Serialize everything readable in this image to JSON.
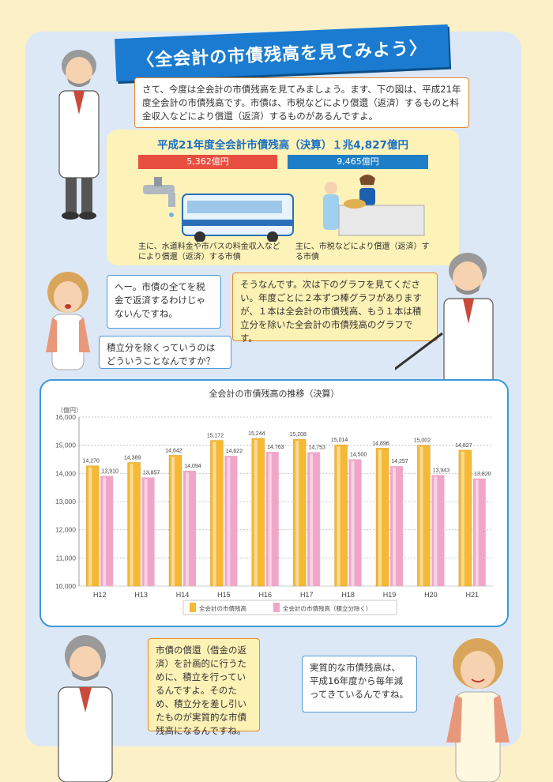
{
  "title": "〈全会計の市債残高を見てみよう〉",
  "intro_text": "さて、今度は全会計の市債残高を見てみましょう。ます、下の図は、平成21年度全会計の市債残高です。市債は、市税などにより償還（返済）するものと料金収入などにより償還（返済）するものがあるんですよ。",
  "summary": {
    "title": "平成21年度全会計市債残高（決算）１兆4,827億円",
    "left_amount": "5,362億円",
    "right_amount": "9,465億円",
    "left_caption": "主に、水道料金や市バスの料金収入などにより償還（返済）する市債",
    "right_caption": "主に、市税などにより償還（返済）する市債"
  },
  "dialog": {
    "woman_1": "へー。市債の全てを税金で返済するわけじゃないんですね。",
    "woman_2": "積立分を除くっていうのはどういうことなんですか？",
    "man_1": "そうなんです。次は下のグラフを見てください。年度ごとに２本ずつ棒グラフがありますが、１本は全会計の市債残高、もう１本は積立分を除いた全会計の市債残高のグラフです。",
    "man_2": "市債の償還（借金の返済）を計画的に行うために、積立を行っているんですよ。そのため、積立分を差し引いたものが実質的な市債残高になるんですね。",
    "woman_3": "実質的な市債残高は、平成16年度から毎年減ってきているんですね。"
  },
  "chart_data": {
    "type": "bar",
    "title": "全会計の市債残高の推移（決算）",
    "ylabel": "（億円）",
    "ylim": [
      10000,
      16000
    ],
    "yticks": [
      "10,000",
      "11,000",
      "12,000",
      "13,000",
      "14,000",
      "15,000",
      "16,000"
    ],
    "categories": [
      "H12",
      "H13",
      "H14",
      "H15",
      "H16",
      "H17",
      "H18",
      "H19",
      "H20",
      "H21"
    ],
    "series": [
      {
        "name": "全会計の市債残高",
        "color": "#f5b935",
        "values": [
          14270,
          14389,
          14642,
          15172,
          15244,
          15208,
          15014,
          14896,
          15002,
          14827
        ],
        "labels": [
          "14,270",
          "14,389",
          "14,642",
          "15,172",
          "15,244",
          "15,208",
          "15,014",
          "14,896",
          "15,002",
          "14,827"
        ]
      },
      {
        "name": "全会計の市債残高（積立分除く）",
        "color": "#f0a6c8",
        "values": [
          13910,
          13857,
          14094,
          14622,
          14763,
          14753,
          14500,
          14257,
          13943,
          13820
        ],
        "labels": [
          "13,910",
          "13,857",
          "14,094",
          "14,622",
          "14,763",
          "14,753",
          "14,500",
          "14,257",
          "13,943",
          "13,820"
        ]
      }
    ],
    "grid": true,
    "legend": "bottom"
  },
  "icons": [
    "professor-illustration",
    "woman-illustration",
    "faucet-icon",
    "bus-icon",
    "shop-counter-icon"
  ]
}
